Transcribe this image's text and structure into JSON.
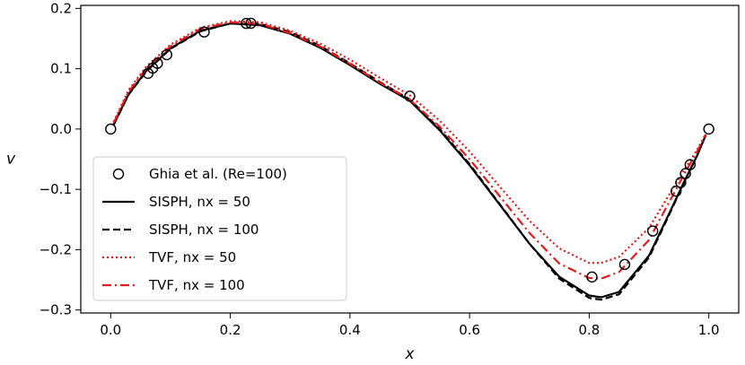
{
  "chart_data": {
    "type": "line",
    "xlabel": "x",
    "ylabel": "v",
    "xlim": [
      -0.05,
      1.05
    ],
    "ylim": [
      -0.305,
      0.205
    ],
    "xticks": [
      0.0,
      0.2,
      0.4,
      0.6,
      0.8,
      1.0
    ],
    "xtick_labels": [
      "0.0",
      "0.2",
      "0.4",
      "0.6",
      "0.8",
      "1.0"
    ],
    "yticks": [
      -0.3,
      -0.2,
      -0.1,
      0.0,
      0.1,
      0.2
    ],
    "ytick_labels": [
      "−0.3",
      "−0.2",
      "−0.1",
      "0.0",
      "0.1",
      "0.2"
    ],
    "legend_position": "lower-left",
    "scatter": {
      "name": "Ghia et al. (Re=100)",
      "color": "#000000",
      "marker": "open-circle",
      "x": [
        0.0,
        0.0625,
        0.0703,
        0.0781,
        0.0938,
        0.1563,
        0.2266,
        0.2344,
        0.5,
        0.8047,
        0.8594,
        0.9063,
        0.9453,
        0.9531,
        0.9609,
        0.9688,
        1.0
      ],
      "y": [
        0.0,
        0.0923,
        0.1009,
        0.1089,
        0.1232,
        0.1608,
        0.1751,
        0.1753,
        0.0545,
        -0.2453,
        -0.2245,
        -0.1691,
        -0.1031,
        -0.0886,
        -0.0739,
        -0.0591,
        0.0
      ]
    },
    "series": [
      {
        "name": "SISPH, nx = 50",
        "color": "#000000",
        "dash": "solid",
        "x": [
          0.005,
          0.03,
          0.06,
          0.1,
          0.15,
          0.2,
          0.25,
          0.3,
          0.35,
          0.4,
          0.45,
          0.5,
          0.55,
          0.6,
          0.65,
          0.7,
          0.75,
          0.8,
          0.82,
          0.85,
          0.9,
          0.93,
          0.96,
          0.98,
          0.995
        ],
        "y": [
          0.008,
          0.058,
          0.097,
          0.134,
          0.163,
          0.175,
          0.172,
          0.158,
          0.135,
          0.106,
          0.075,
          0.047,
          -0.002,
          -0.06,
          -0.125,
          -0.19,
          -0.245,
          -0.276,
          -0.279,
          -0.27,
          -0.21,
          -0.148,
          -0.085,
          -0.045,
          -0.01
        ]
      },
      {
        "name": "SISPH, nx = 100",
        "color": "#000000",
        "dash": "dashed",
        "x": [
          0.005,
          0.03,
          0.06,
          0.1,
          0.15,
          0.2,
          0.25,
          0.3,
          0.35,
          0.4,
          0.45,
          0.5,
          0.55,
          0.6,
          0.65,
          0.7,
          0.75,
          0.8,
          0.82,
          0.85,
          0.9,
          0.93,
          0.96,
          0.98,
          0.995
        ],
        "y": [
          0.007,
          0.057,
          0.096,
          0.133,
          0.162,
          0.175,
          0.174,
          0.161,
          0.138,
          0.109,
          0.078,
          0.049,
          0.0,
          -0.058,
          -0.124,
          -0.19,
          -0.248,
          -0.28,
          -0.283,
          -0.274,
          -0.213,
          -0.15,
          -0.086,
          -0.045,
          -0.01
        ]
      },
      {
        "name": "TVF, nx = 50",
        "color": "#e41a1c",
        "dash": "dotted",
        "x": [
          0.005,
          0.03,
          0.06,
          0.1,
          0.15,
          0.2,
          0.25,
          0.3,
          0.35,
          0.4,
          0.45,
          0.5,
          0.55,
          0.6,
          0.65,
          0.7,
          0.75,
          0.8,
          0.82,
          0.85,
          0.9,
          0.93,
          0.96,
          0.98,
          0.995
        ],
        "y": [
          0.012,
          0.065,
          0.104,
          0.14,
          0.168,
          0.179,
          0.177,
          0.163,
          0.142,
          0.115,
          0.085,
          0.056,
          0.014,
          -0.037,
          -0.095,
          -0.152,
          -0.198,
          -0.222,
          -0.222,
          -0.212,
          -0.164,
          -0.115,
          -0.066,
          -0.035,
          -0.008
        ]
      },
      {
        "name": "TVF, nx = 100",
        "color": "#e41a1c",
        "dash": "dashdot",
        "x": [
          0.005,
          0.03,
          0.06,
          0.1,
          0.15,
          0.2,
          0.25,
          0.3,
          0.35,
          0.4,
          0.45,
          0.5,
          0.55,
          0.6,
          0.65,
          0.7,
          0.75,
          0.8,
          0.82,
          0.85,
          0.9,
          0.93,
          0.96,
          0.98,
          0.995
        ],
        "y": [
          0.01,
          0.062,
          0.101,
          0.137,
          0.166,
          0.177,
          0.174,
          0.159,
          0.137,
          0.108,
          0.077,
          0.049,
          0.004,
          -0.05,
          -0.111,
          -0.172,
          -0.223,
          -0.247,
          -0.248,
          -0.237,
          -0.184,
          -0.128,
          -0.073,
          -0.038,
          -0.009
        ]
      }
    ]
  }
}
